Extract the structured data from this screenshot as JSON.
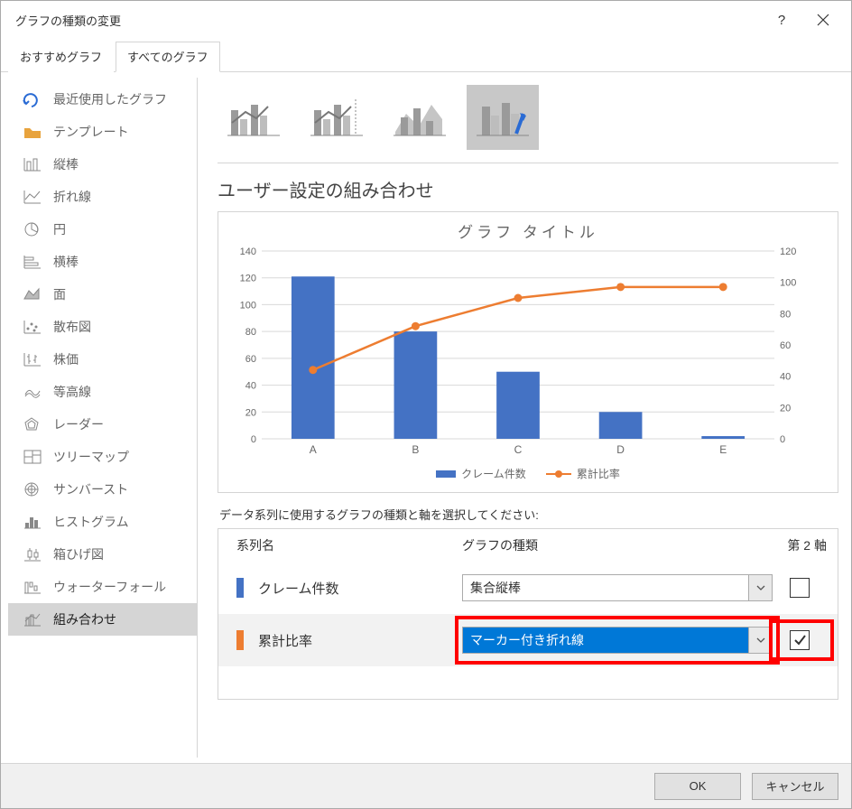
{
  "title": "グラフの種類の変更",
  "tabs": {
    "recommended": "おすすめグラフ",
    "all": "すべてのグラフ"
  },
  "sidebar": [
    {
      "icon": "recent",
      "label": "最近使用したグラフ",
      "color": "#2a6bd4"
    },
    {
      "icon": "template",
      "label": "テンプレート",
      "color": "#e8a33d"
    },
    {
      "icon": "column",
      "label": "縦棒",
      "color": "#888"
    },
    {
      "icon": "line",
      "label": "折れ線",
      "color": "#888"
    },
    {
      "icon": "pie",
      "label": "円",
      "color": "#888"
    },
    {
      "icon": "bar",
      "label": "横棒",
      "color": "#888"
    },
    {
      "icon": "area",
      "label": "面",
      "color": "#888"
    },
    {
      "icon": "scatter",
      "label": "散布図",
      "color": "#888"
    },
    {
      "icon": "stock",
      "label": "株価",
      "color": "#888"
    },
    {
      "icon": "surface",
      "label": "等高線",
      "color": "#888"
    },
    {
      "icon": "radar",
      "label": "レーダー",
      "color": "#888"
    },
    {
      "icon": "treemap",
      "label": "ツリーマップ",
      "color": "#888"
    },
    {
      "icon": "sunburst",
      "label": "サンバースト",
      "color": "#888"
    },
    {
      "icon": "histogram",
      "label": "ヒストグラム",
      "color": "#888"
    },
    {
      "icon": "boxplot",
      "label": "箱ひげ図",
      "color": "#888"
    },
    {
      "icon": "waterfall",
      "label": "ウォーターフォール",
      "color": "#888"
    },
    {
      "icon": "combo",
      "label": "組み合わせ",
      "color": "#888",
      "selected": true
    }
  ],
  "comboTitle": "ユーザー設定の組み合わせ",
  "chart": {
    "title": "グラフ タイトル",
    "categories": [
      "A",
      "B",
      "C",
      "D",
      "E"
    ],
    "bars": [
      121,
      80,
      50,
      20,
      2
    ],
    "line": [
      44,
      72,
      90,
      97,
      97
    ],
    "barColor": "#4472c4",
    "lineColor": "#ed7d31",
    "yLeft": {
      "min": 0,
      "max": 140,
      "step": 20
    },
    "yRight": {
      "min": 0,
      "max": 120,
      "step": 20
    },
    "legend": {
      "bars": "クレーム件数",
      "line": "累計比率"
    },
    "gridColor": "#d9d9d9",
    "axisLabelColor": "#666666",
    "axisFontSize": 11
  },
  "seriesInstr": "データ系列に使用するグラフの種類と軸を選択してください:",
  "seriesHeader": {
    "name": "系列名",
    "type": "グラフの種類",
    "axis": "第 2 軸"
  },
  "series": [
    {
      "swatch": "#4472c4",
      "name": "クレーム件数",
      "type": "集合縦棒",
      "axis2": false
    },
    {
      "swatch": "#ed7d31",
      "name": "累計比率",
      "type": "マーカー付き折れ線",
      "axis2": true,
      "highlighted": true
    }
  ],
  "buttons": {
    "ok": "OK",
    "cancel": "キャンセル"
  }
}
